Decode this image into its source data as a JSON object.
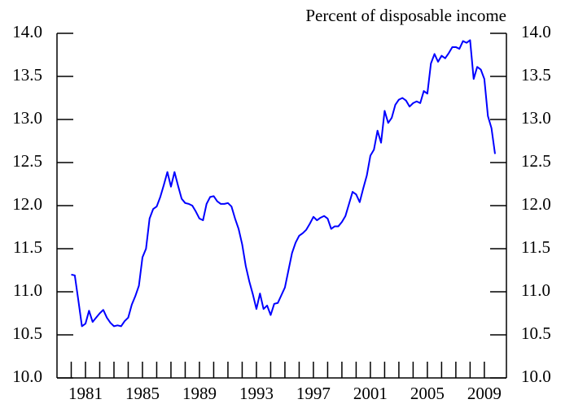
{
  "chart_data": {
    "type": "line",
    "title": "Percent of disposable income",
    "x": [
      1980,
      1980.25,
      1980.5,
      1980.75,
      1981,
      1981.25,
      1981.5,
      1981.75,
      1982,
      1982.25,
      1982.5,
      1982.75,
      1983,
      1983.25,
      1983.5,
      1983.75,
      1984,
      1984.25,
      1984.5,
      1984.75,
      1985,
      1985.25,
      1985.5,
      1985.75,
      1986,
      1986.25,
      1986.5,
      1986.75,
      1987,
      1987.25,
      1987.5,
      1987.75,
      1988,
      1988.25,
      1988.5,
      1988.75,
      1989,
      1989.25,
      1989.5,
      1989.75,
      1990,
      1990.25,
      1990.5,
      1990.75,
      1991,
      1991.25,
      1991.5,
      1991.75,
      1992,
      1992.25,
      1992.5,
      1992.75,
      1993,
      1993.25,
      1993.5,
      1993.75,
      1994,
      1994.25,
      1994.5,
      1994.75,
      1995,
      1995.25,
      1995.5,
      1995.75,
      1996,
      1996.25,
      1996.5,
      1996.75,
      1997,
      1997.25,
      1997.5,
      1997.75,
      1998,
      1998.25,
      1998.5,
      1998.75,
      1999,
      1999.25,
      1999.5,
      1999.75,
      2000,
      2000.25,
      2000.5,
      2000.75,
      2001,
      2001.25,
      2001.5,
      2001.75,
      2002,
      2002.25,
      2002.5,
      2002.75,
      2003,
      2003.25,
      2003.5,
      2003.75,
      2004,
      2004.25,
      2004.5,
      2004.75,
      2005,
      2005.25,
      2005.5,
      2005.75,
      2006,
      2006.25,
      2006.5,
      2006.75,
      2007,
      2007.25,
      2007.5,
      2007.75,
      2008,
      2008.25,
      2008.5,
      2008.75,
      2009,
      2009.25,
      2009.5,
      2009.75
    ],
    "series": [
      {
        "color": "#0000ff",
        "values": [
          11.2,
          11.19,
          10.9,
          10.6,
          10.63,
          10.78,
          10.65,
          10.7,
          10.75,
          10.79,
          10.7,
          10.64,
          10.6,
          10.61,
          10.6,
          10.66,
          10.7,
          10.85,
          10.95,
          11.07,
          11.4,
          11.5,
          11.85,
          11.96,
          11.99,
          12.1,
          12.24,
          12.39,
          12.22,
          12.39,
          12.23,
          12.08,
          12.03,
          12.02,
          12.0,
          11.93,
          11.85,
          11.83,
          12.02,
          12.1,
          12.11,
          12.05,
          12.02,
          12.02,
          12.03,
          11.99,
          11.85,
          11.73,
          11.55,
          11.3,
          11.12,
          10.97,
          10.8,
          10.98,
          10.8,
          10.84,
          10.73,
          10.86,
          10.87,
          10.96,
          11.05,
          11.25,
          11.45,
          11.57,
          11.65,
          11.68,
          11.72,
          11.79,
          11.87,
          11.83,
          11.86,
          11.88,
          11.85,
          11.73,
          11.76,
          11.76,
          11.81,
          11.88,
          12.02,
          12.16,
          12.13,
          12.04,
          12.2,
          12.35,
          12.58,
          12.65,
          12.87,
          12.73,
          13.1,
          12.96,
          13.02,
          13.17,
          13.23,
          13.25,
          13.22,
          13.15,
          13.19,
          13.21,
          13.19,
          13.33,
          13.3,
          13.65,
          13.76,
          13.67,
          13.74,
          13.71,
          13.77,
          13.84,
          13.84,
          13.82,
          13.91,
          13.89,
          13.92,
          13.47,
          13.61,
          13.58,
          13.47,
          13.04,
          12.9,
          12.6
        ]
      }
    ],
    "xlim": [
      1979,
      2010.55
    ],
    "xticks": [
      1981,
      1985,
      1989,
      1993,
      1997,
      2001,
      2005,
      2009
    ],
    "xminorticks": [
      1980,
      1981,
      1982,
      1983,
      1984,
      1985,
      1986,
      1987,
      1988,
      1989,
      1990,
      1991,
      1992,
      1993,
      1994,
      1995,
      1996,
      1997,
      1998,
      1999,
      2000,
      2001,
      2002,
      2003,
      2004,
      2005,
      2006,
      2007,
      2008,
      2009
    ],
    "ylim": [
      10,
      14
    ],
    "yticks": [
      {
        "value": 10,
        "label": "10.0"
      },
      {
        "value": 10.5,
        "label": "10.5"
      },
      {
        "value": 11,
        "label": "11.0"
      },
      {
        "value": 11.5,
        "label": "11.5"
      },
      {
        "value": 12,
        "label": "12.0"
      },
      {
        "value": 12.5,
        "label": "12.5"
      },
      {
        "value": 13,
        "label": "13.0"
      },
      {
        "value": 13.5,
        "label": "13.5"
      },
      {
        "value": 14,
        "label": "14.0"
      }
    ],
    "y2lim": [
      10,
      14
    ],
    "y2ticks": [
      {
        "value": 10,
        "label": "10.0"
      },
      {
        "value": 10.5,
        "label": "10.5"
      },
      {
        "value": 11,
        "label": "11.0"
      },
      {
        "value": 11.5,
        "label": "11.5"
      },
      {
        "value": 12,
        "label": "12.0"
      },
      {
        "value": 12.5,
        "label": "12.5"
      },
      {
        "value": 13,
        "label": "13.0"
      },
      {
        "value": 13.5,
        "label": "13.5"
      },
      {
        "value": 14,
        "label": "14.0"
      }
    ]
  }
}
